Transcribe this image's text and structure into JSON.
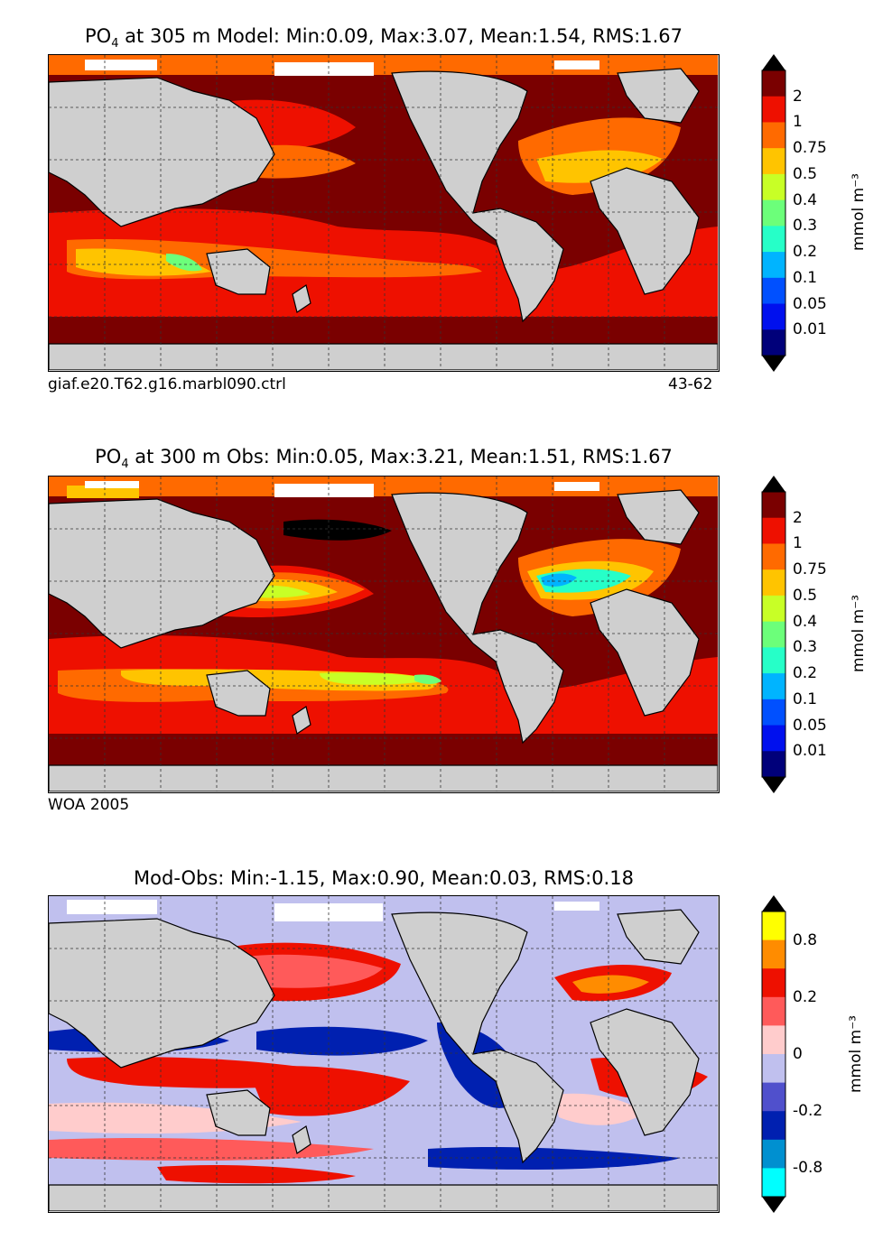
{
  "panels": [
    {
      "id": "model",
      "title_prefix": "PO",
      "title_sub": "4",
      "title_rest": " at 305 m Model: Min:0.09, Max:3.07, Mean:1.54, RMS:1.67",
      "footer_left": "giaf.e20.T62.g16.marbl090.ctrl",
      "footer_right": "43-62",
      "colorbar": {
        "ticks": [
          "2",
          "1",
          "0.75",
          "0.5",
          "0.4",
          "0.3",
          "0.2",
          "0.1",
          "0.05",
          "0.01"
        ],
        "colors": [
          "#7a0000",
          "#ee1000",
          "#ff6a00",
          "#ffc400",
          "#c8ff26",
          "#6cff7a",
          "#26ffc8",
          "#00b4ff",
          "#0050ff",
          "#0010ee",
          "#00007a"
        ],
        "units": "mmol m⁻³"
      }
    },
    {
      "id": "obs",
      "title_prefix": "PO",
      "title_sub": "4",
      "title_rest": " at 300 m Obs: Min:0.05, Max:3.21, Mean:1.51, RMS:1.67",
      "footer_left": "WOA 2005",
      "footer_right": "",
      "colorbar": {
        "ticks": [
          "2",
          "1",
          "0.75",
          "0.5",
          "0.4",
          "0.3",
          "0.2",
          "0.1",
          "0.05",
          "0.01"
        ],
        "colors": [
          "#7a0000",
          "#ee1000",
          "#ff6a00",
          "#ffc400",
          "#c8ff26",
          "#6cff7a",
          "#26ffc8",
          "#00b4ff",
          "#0050ff",
          "#0010ee",
          "#00007a"
        ],
        "units": "mmol m⁻³"
      }
    },
    {
      "id": "diff",
      "title_prefix": "",
      "title_sub": "",
      "title_rest": "Mod-Obs: Min:-1.15, Max:0.90, Mean:0.03, RMS:0.18",
      "footer_left": "",
      "footer_right": "",
      "colorbar": {
        "ticks": [
          "0.8",
          "0.2",
          "0",
          "-0.2",
          "-0.8"
        ],
        "colors": [
          "#ffff00",
          "#ff8c00",
          "#ee1000",
          "#ff5a5a",
          "#ffcccc",
          "#c0c0ee",
          "#5050cc",
          "#0020b0",
          "#0090d0",
          "#00ffff"
        ],
        "units": "mmol m⁻³"
      }
    }
  ]
}
